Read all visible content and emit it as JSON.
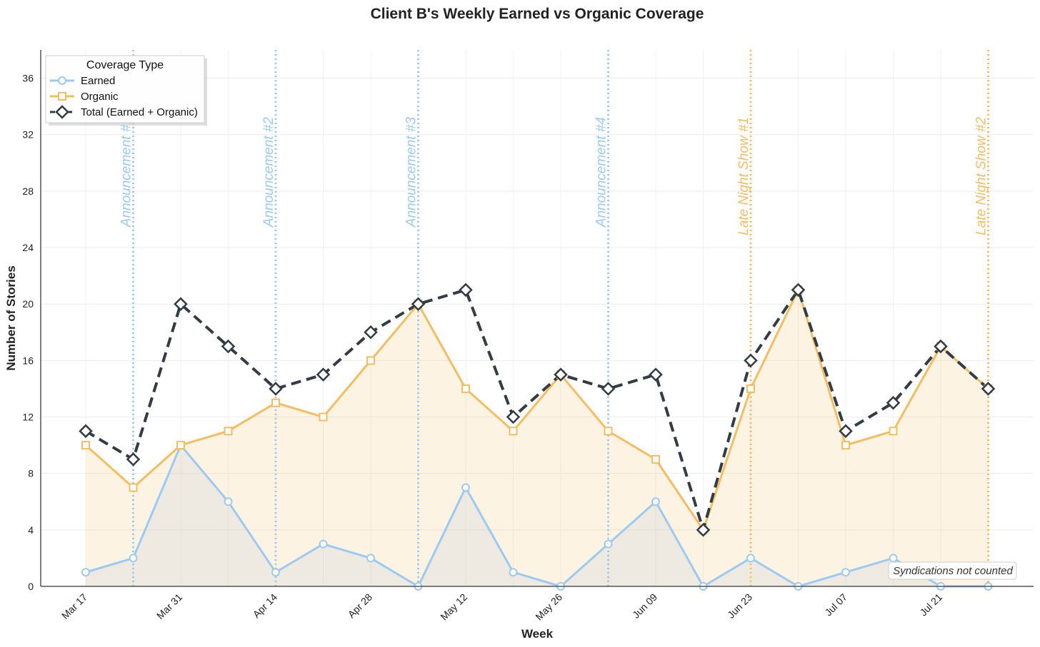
{
  "chart_data": {
    "type": "line",
    "title": "Client B's Weekly Earned vs Organic Coverage",
    "xlabel": "Week",
    "ylabel": "Number of Stories",
    "ylim": [
      0,
      38
    ],
    "yticks": [
      0,
      4,
      8,
      12,
      16,
      20,
      24,
      28,
      32,
      36
    ],
    "grid": true,
    "x": [
      "Mar 17",
      "Mar 24",
      "Mar 31",
      "Apr 07",
      "Apr 14",
      "Apr 21",
      "Apr 28",
      "May 05",
      "May 12",
      "May 19",
      "May 26",
      "Jun 02",
      "Jun 09",
      "Jun 16",
      "Jun 23",
      "Jun 30",
      "Jul 07",
      "Jul 14",
      "Jul 21",
      "Jul 28"
    ],
    "xtick_labels": [
      {
        "index": 0,
        "label": "Mar 17"
      },
      {
        "index": 2,
        "label": "Mar 31"
      },
      {
        "index": 4,
        "label": "Apr 14"
      },
      {
        "index": 6,
        "label": "Apr 28"
      },
      {
        "index": 8,
        "label": "May 12"
      },
      {
        "index": 10,
        "label": "May 26"
      },
      {
        "index": 12,
        "label": "Jun 09"
      },
      {
        "index": 14,
        "label": "Jun 23"
      },
      {
        "index": 16,
        "label": "Jul 07"
      },
      {
        "index": 18,
        "label": "Jul 21"
      }
    ],
    "series": [
      {
        "name": "Earned",
        "color": "#9ccaf2",
        "marker": "circle",
        "linestyle": "solid",
        "fill": true,
        "values": [
          1,
          2,
          10,
          6,
          1,
          3,
          2,
          0,
          7,
          1,
          0,
          3,
          6,
          0,
          2,
          0,
          1,
          2,
          0,
          0
        ]
      },
      {
        "name": "Organic",
        "color": "#f4bd62",
        "marker": "square",
        "linestyle": "solid",
        "fill": true,
        "values": [
          10,
          7,
          10,
          11,
          13,
          12,
          16,
          20,
          14,
          11,
          15,
          11,
          9,
          4,
          14,
          21,
          10,
          11,
          17,
          14
        ]
      },
      {
        "name": "Total (Earned + Organic)",
        "color": "#333c44",
        "marker": "diamond",
        "linestyle": "dashed",
        "fill": false,
        "values": [
          11,
          9,
          20,
          17,
          14,
          15,
          18,
          20,
          21,
          12,
          15,
          14,
          15,
          4,
          16,
          21,
          11,
          13,
          17,
          14
        ]
      }
    ],
    "legend": {
      "title": "Coverage Type",
      "position": "top-left"
    },
    "events": [
      {
        "label": "Announcement #1",
        "x_index": 1,
        "color": "#9ccaf2"
      },
      {
        "label": "Announcement #2",
        "x_index": 4,
        "color": "#9ccaf2"
      },
      {
        "label": "Announcement #3",
        "x_index": 7,
        "color": "#9ccaf2"
      },
      {
        "label": "Announcement #4",
        "x_index": 11,
        "color": "#9ccaf2"
      },
      {
        "label": "Late Night Show #1",
        "x_index": 14,
        "color": "#f4bd62"
      },
      {
        "label": "Late Night Show #2",
        "x_index": 19,
        "color": "#f4bd62"
      }
    ],
    "annotation": "Syndications not counted"
  }
}
